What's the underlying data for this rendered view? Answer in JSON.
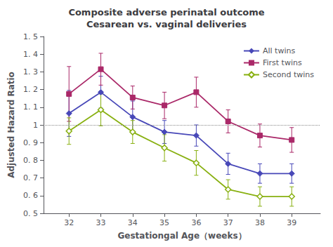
{
  "chart_data": {
    "type": "line",
    "title": "Composite adverse perinatal outcome\nCesarean vs. vaginal deliveries",
    "xlabel": "Gestationgal Age（weeks）",
    "ylabel": "Adjusted Hazard Ratio",
    "x": [
      32,
      33,
      34,
      35,
      36,
      37,
      38,
      39
    ],
    "series": [
      {
        "name": "All twins",
        "color": "#4848b8",
        "marker": "diamond",
        "values": [
          1.065,
          1.185,
          1.045,
          0.96,
          0.94,
          0.78,
          0.725,
          0.725
        ],
        "yerr_lo": [
          0.13,
          0.09,
          0.09,
          0.065,
          0.06,
          0.06,
          0.055,
          0.055
        ],
        "yerr_hi": [
          0.13,
          0.09,
          0.09,
          0.065,
          0.06,
          0.06,
          0.055,
          0.055
        ]
      },
      {
        "name": "First twins",
        "color": "#aa2868",
        "marker": "square",
        "values": [
          1.175,
          1.315,
          1.155,
          1.11,
          1.185,
          1.02,
          0.94,
          0.915
        ],
        "yerr_lo": [
          0.155,
          0.09,
          0.065,
          0.075,
          0.085,
          0.065,
          0.065,
          0.07
        ],
        "yerr_hi": [
          0.155,
          0.09,
          0.065,
          0.075,
          0.085,
          0.065,
          0.065,
          0.07
        ]
      },
      {
        "name": "Second twins",
        "color": "#88b010",
        "marker": "open diamond",
        "values": [
          0.965,
          1.085,
          0.96,
          0.87,
          0.785,
          0.635,
          0.595,
          0.595
        ],
        "yerr_lo": [
          0.075,
          0.09,
          0.065,
          0.075,
          0.07,
          0.055,
          0.055,
          0.055
        ],
        "yerr_hi": [
          0.075,
          0.09,
          0.065,
          0.075,
          0.07,
          0.055,
          0.055,
          0.055
        ]
      }
    ],
    "ref_line": 1.0,
    "xlim": [
      31.2,
      39.9
    ],
    "xticks": [
      32,
      33,
      34,
      35,
      36,
      37,
      38,
      39
    ],
    "ylim": [
      0.5,
      1.5
    ],
    "yticks": [
      {
        "value": 0.5,
        "label": "0. 5"
      },
      {
        "value": 0.6,
        "label": "0. 6"
      },
      {
        "value": 0.7,
        "label": "0. 7"
      },
      {
        "value": 0.8,
        "label": "0. 8"
      },
      {
        "value": 0.9,
        "label": "0. 9"
      },
      1,
      {
        "value": 1.1,
        "label": "1. 1"
      },
      {
        "value": 1.2,
        "label": "1. 2"
      },
      {
        "value": 1.3,
        "label": "1. 3"
      },
      {
        "value": 1.4,
        "label": "1. 4"
      },
      {
        "value": 1.5,
        "label": "1. 5"
      }
    ],
    "grid": false,
    "legend": "upper right"
  }
}
